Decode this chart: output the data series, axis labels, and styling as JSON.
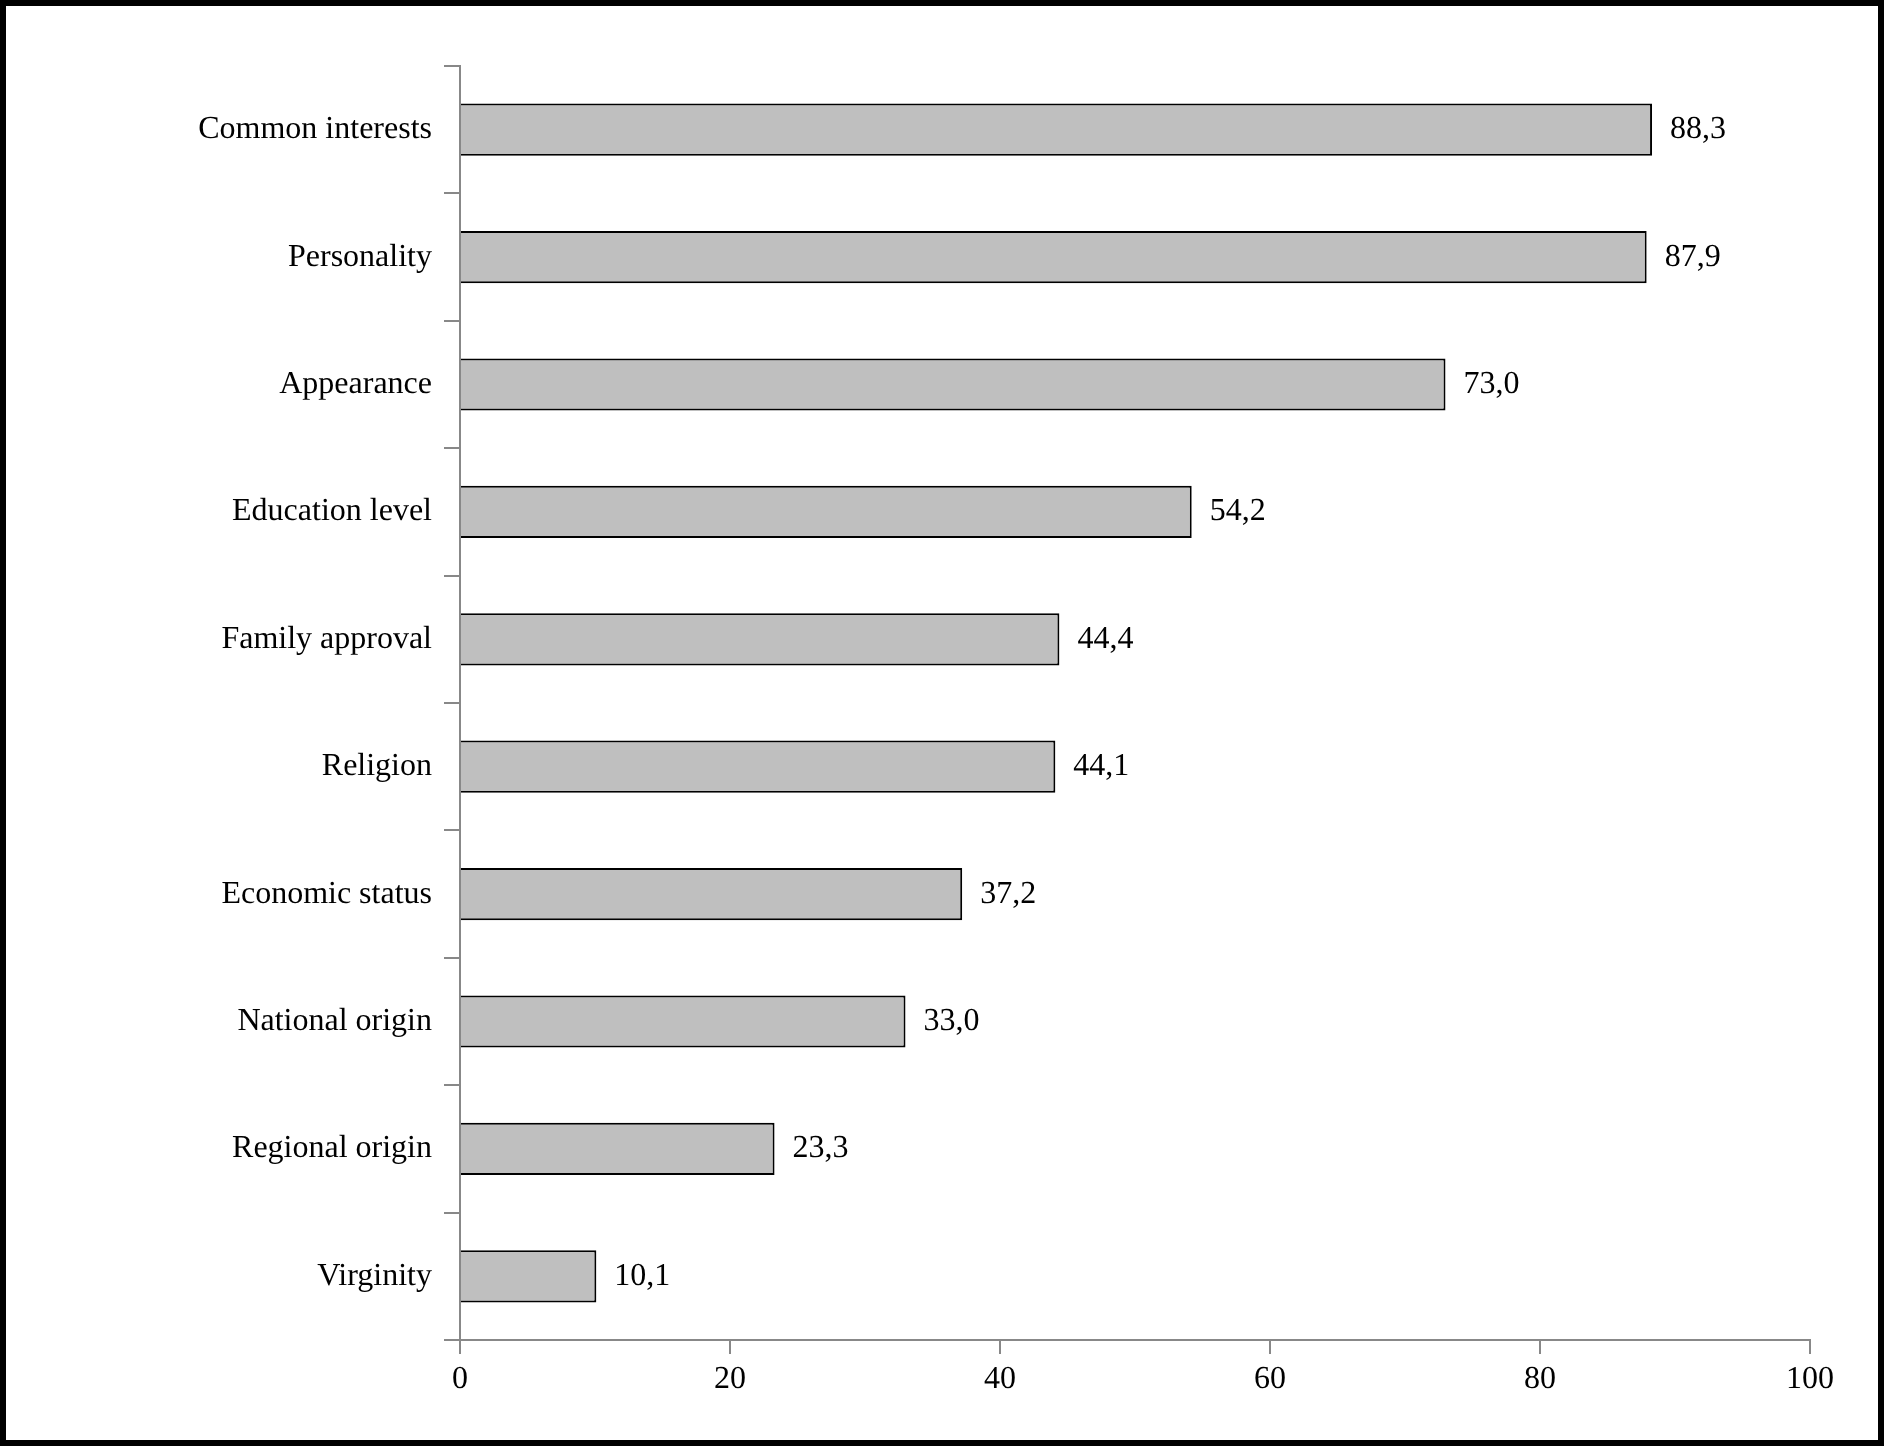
{
  "chart_data": {
    "type": "bar",
    "orientation": "horizontal",
    "categories": [
      "Common interests",
      "Personality",
      "Appearance",
      "Education level",
      "Family approval",
      "Religion",
      "Economic status",
      "National origin",
      "Regional origin",
      "Virginity"
    ],
    "values": [
      88.3,
      87.9,
      73.0,
      54.2,
      44.4,
      44.1,
      37.2,
      33.0,
      23.3,
      10.1
    ],
    "value_labels": [
      "88,3",
      "87,9",
      "73,0",
      "54,2",
      "44,4",
      "44,1",
      "37,2",
      "33,0",
      "23,3",
      "10,1"
    ],
    "color": "#bfbfbf",
    "xlim": [
      0,
      100
    ],
    "xticks": [
      0,
      20,
      40,
      60,
      80,
      100
    ],
    "grid": false,
    "legend": false
  }
}
